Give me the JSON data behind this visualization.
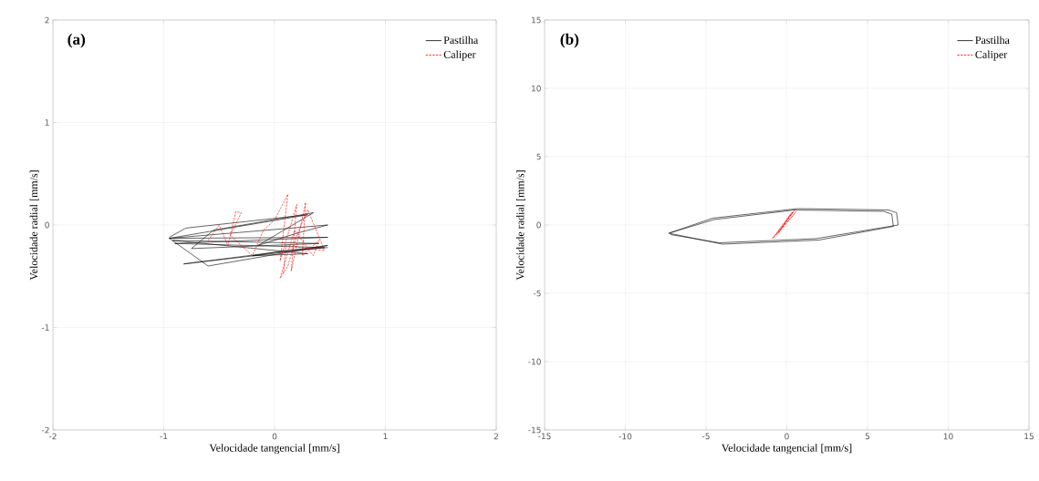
{
  "chart_data": [
    {
      "type": "line",
      "annotations": [
        "(a)"
      ],
      "xlabel": "Velocidade tangencial [mm/s]",
      "ylabel": "Velocidade radial [mm/s]",
      "xlim": [
        -2,
        2
      ],
      "ylim": [
        -2,
        2
      ],
      "xticks": [
        -2,
        -1,
        0,
        1,
        2
      ],
      "yticks": [
        -2,
        -1,
        0,
        1,
        2
      ],
      "grid": true,
      "legend": "top right",
      "marker": "none",
      "series": [
        {
          "name": "Pastilha",
          "color": "#000000",
          "line_style": "solid",
          "x": [
            -0.95,
            -0.8,
            0.3,
            -0.95,
            0.48,
            -0.9,
            0.45,
            -0.82,
            0.48,
            -0.6,
            -0.95,
            0.48,
            0.2,
            -0.15,
            0.35,
            -0.55,
            -0.75,
            0.4,
            -0.92,
            0.3,
            -0.2,
            0.1,
            0.48
          ],
          "values": [
            -0.12,
            -0.03,
            0.1,
            -0.13,
            -0.12,
            -0.18,
            -0.22,
            -0.38,
            -0.2,
            -0.4,
            -0.13,
            0.0,
            -0.08,
            -0.2,
            0.12,
            -0.05,
            -0.23,
            -0.18,
            -0.15,
            -0.28,
            -0.3,
            -0.25,
            -0.22
          ]
        },
        {
          "name": "Caliper",
          "color": "#ff0000",
          "line_style": "dashed",
          "x": [
            -0.6,
            -0.5,
            -0.42,
            -0.35,
            -0.3,
            -0.4,
            -0.2,
            -0.1,
            0.0,
            0.12,
            0.05,
            0.2,
            0.15,
            0.28,
            0.25,
            0.4,
            0.35,
            0.18,
            0.05,
            0.12,
            0.2,
            0.3,
            0.45,
            0.1,
            0.08
          ],
          "values": [
            -0.15,
            0.0,
            -0.2,
            0.13,
            0.12,
            -0.1,
            -0.3,
            -0.05,
            0.05,
            0.3,
            -0.35,
            0.2,
            -0.45,
            0.22,
            -0.3,
            -0.15,
            -0.3,
            -0.05,
            -0.52,
            -0.4,
            -0.1,
            0.15,
            -0.25,
            -0.2,
            -0.48
          ]
        }
      ]
    },
    {
      "type": "line",
      "annotations": [
        "(b)"
      ],
      "xlabel": "Velocidade tangencial [mm/s]",
      "ylabel": "Velocidade radial [mm/s]",
      "xlim": [
        -15,
        15
      ],
      "ylim": [
        -15,
        15
      ],
      "xticks": [
        -15,
        -10,
        -5,
        0,
        5,
        10,
        15
      ],
      "yticks": [
        -15,
        -10,
        -5,
        0,
        5,
        10,
        15
      ],
      "grid": true,
      "legend": "top right",
      "marker": "none",
      "series": [
        {
          "name": "Pastilha",
          "color": "#000000",
          "line_style": "solid",
          "x": [
            -7.3,
            -4.5,
            0.5,
            6.0,
            6.5,
            6.6,
            2.0,
            -4.0,
            -7.3,
            -4.6,
            0.7,
            6.3,
            6.8,
            6.9,
            1.8,
            -4.2,
            -7.2
          ],
          "values": [
            -0.6,
            0.4,
            1.1,
            1.0,
            0.8,
            -0.1,
            -1.1,
            -1.4,
            -0.6,
            0.5,
            1.2,
            1.1,
            0.9,
            0.0,
            -1.0,
            -1.3,
            -0.7
          ]
        },
        {
          "name": "Caliper",
          "color": "#ff0000",
          "line_style": "dashed",
          "x": [
            -0.8,
            0.5,
            -0.6,
            0.6,
            -0.9,
            0.3,
            -0.5,
            0.4
          ],
          "values": [
            -0.9,
            1.1,
            -0.7,
            1.0,
            -1.0,
            0.9,
            -0.5,
            1.0
          ]
        }
      ]
    }
  ]
}
